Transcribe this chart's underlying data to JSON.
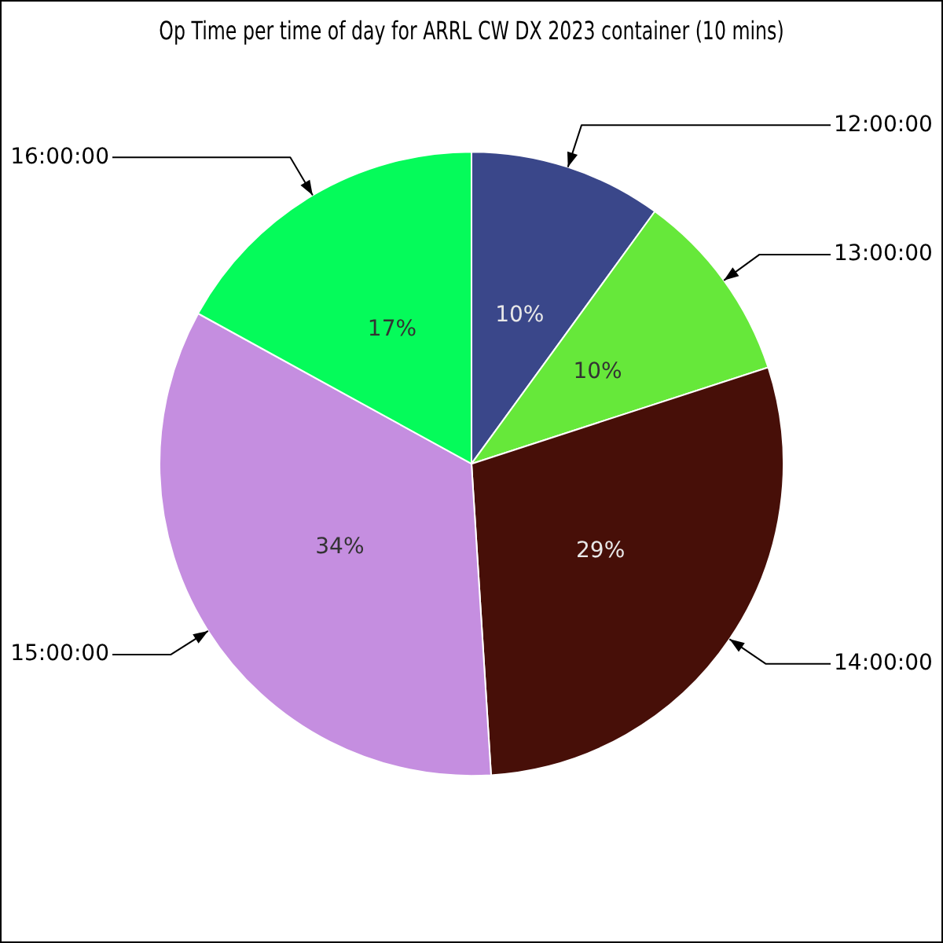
{
  "chart_data": {
    "type": "pie",
    "title": "Op Time per time of day for ARRL CW DX 2023 container (10 mins)",
    "categories": [
      "12:00:00",
      "13:00:00",
      "14:00:00",
      "15:00:00",
      "16:00:00"
    ],
    "values": [
      10,
      10,
      29,
      34,
      17
    ],
    "colors": [
      "#3a478a",
      "#66e83a",
      "#470f08",
      "#c58ee0",
      "#05fb5a"
    ],
    "value_labels": [
      "10%",
      "10%",
      "29%",
      "34%",
      "17%"
    ],
    "legend": false
  }
}
